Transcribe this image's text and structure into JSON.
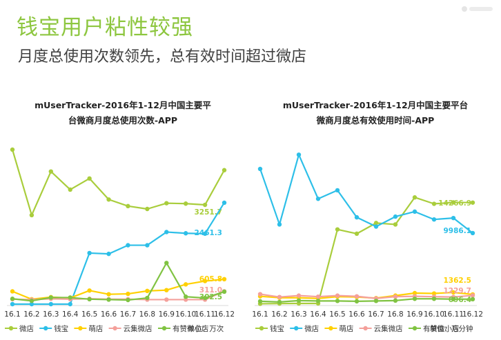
{
  "header": {
    "headline": "钱宝用户粘性较强",
    "subheadline": "月度总使用次数领先，总有效时间超过微店"
  },
  "chart_data": [
    {
      "type": "line",
      "title_line1": "mUserTracker-2016年1-12月中国主要平",
      "title_line2": "台微商月度总使用次数-APP",
      "unit": "单位：万次",
      "categories": [
        "16.1",
        "16.2",
        "16.3",
        "16.4",
        "16.5",
        "16.6",
        "16.7",
        "16.8",
        "16.9",
        "16.10",
        "16.11",
        "16.12"
      ],
      "ylim": [
        0,
        3800
      ],
      "grid": false,
      "legend_position": "bottom",
      "series": [
        {
          "name": "微店",
          "color": "#a9cd3c",
          "values": [
            3750,
            2160,
            3220,
            2780,
            3050,
            2540,
            2380,
            2310,
            2450,
            2440,
            2410,
            3251.7
          ],
          "label": "3251.7"
        },
        {
          "name": "钱宝",
          "color": "#2dbfe8",
          "values": [
            0,
            0,
            0,
            0,
            1240,
            1220,
            1430,
            1430,
            1750,
            1720,
            1710,
            2461.3
          ],
          "label": "2461.3"
        },
        {
          "name": "萌店",
          "color": "#ffd000",
          "values": [
            310,
            120,
            170,
            150,
            330,
            240,
            250,
            320,
            340,
            480,
            560,
            605.8
          ],
          "label": "605.8"
        },
        {
          "name": "云集微店",
          "color": "#f4a09b",
          "values": [
            120,
            110,
            130,
            120,
            130,
            120,
            120,
            110,
            110,
            110,
            110,
            311.0
          ],
          "label": "311.0"
        },
        {
          "name": "有赞微小店",
          "color": "#80c342",
          "values": [
            130,
            80,
            160,
            160,
            120,
            110,
            100,
            150,
            1000,
            180,
            150,
            302.5
          ],
          "label": "302.5"
        }
      ]
    },
    {
      "type": "line",
      "title_line1": "mUserTracker-2016年1-12月中国主要平台",
      "title_line2": "微商月度总有效使用时间-APP",
      "unit": "单位：万分钟",
      "categories": [
        "16.1",
        "16.2",
        "16.3",
        "16.4",
        "16.5",
        "16.6",
        "16.7",
        "16.8",
        "16.9",
        "16.10",
        "16.11",
        "16.12"
      ],
      "ylim": [
        0,
        22000
      ],
      "grid": false,
      "legend_position": "bottom",
      "series": [
        {
          "name": "钱宝",
          "color": "#a9cd3c",
          "values": [
            50,
            80,
            100,
            100,
            10500,
            9900,
            11400,
            11200,
            15000,
            14100,
            14300,
            14266.9
          ],
          "label": "14266.9"
        },
        {
          "name": "微店",
          "color": "#2dbfe8",
          "values": [
            19000,
            11200,
            21000,
            14800,
            16000,
            12200,
            10900,
            12300,
            13000,
            11900,
            12100,
            9986.1
          ],
          "label": "9986.1"
        },
        {
          "name": "萌店",
          "color": "#ffd000",
          "values": [
            1100,
            900,
            900,
            800,
            1050,
            1000,
            850,
            1200,
            1550,
            1500,
            1650,
            1362.5
          ],
          "label": "1362.5"
        },
        {
          "name": "云集微店",
          "color": "#f4a09b",
          "values": [
            1400,
            1000,
            1200,
            1050,
            1200,
            1100,
            800,
            1050,
            1100,
            1050,
            1000,
            1229.7
          ],
          "label": "1229.7"
        },
        {
          "name": "有赞微小店",
          "color": "#80c342",
          "values": [
            400,
            300,
            500,
            450,
            450,
            400,
            450,
            500,
            750,
            750,
            700,
            696.4
          ],
          "label": "696.4"
        }
      ]
    }
  ]
}
